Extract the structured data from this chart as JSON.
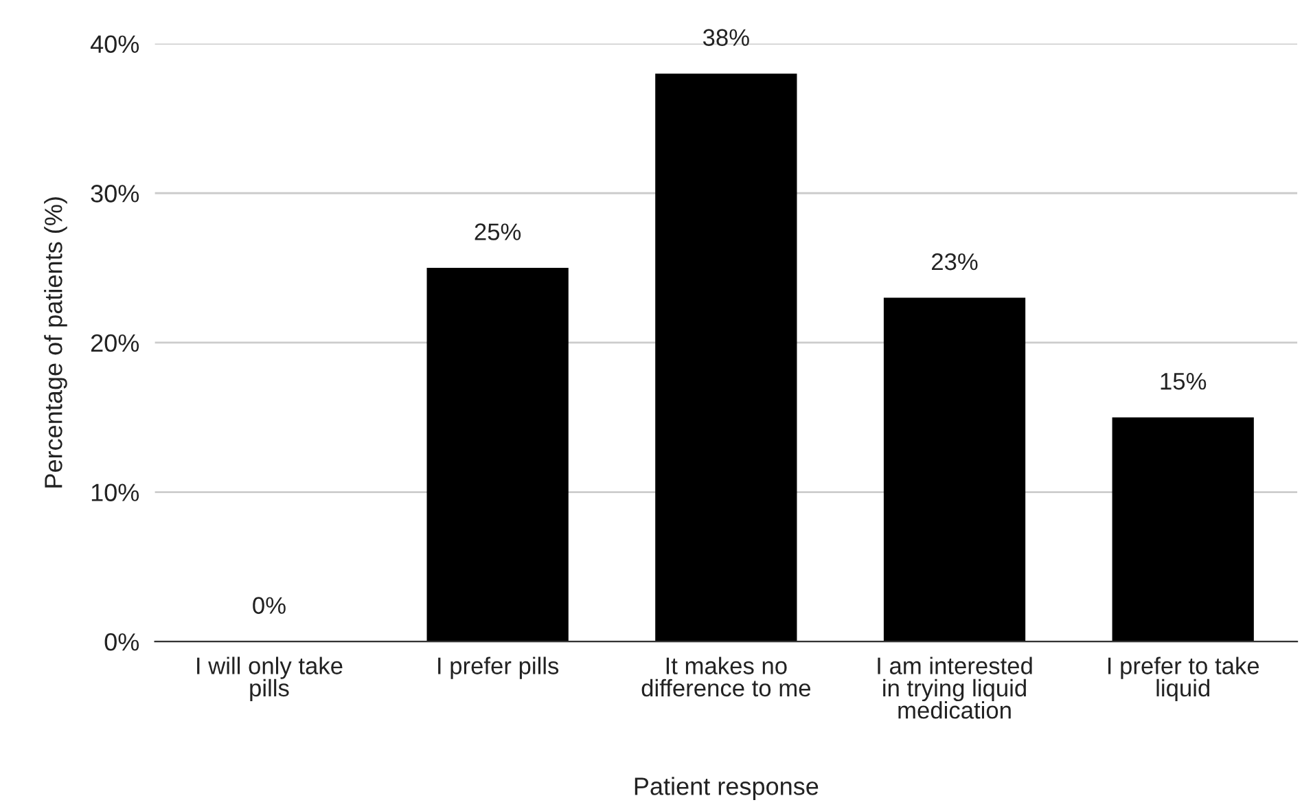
{
  "chart_data": {
    "type": "bar",
    "xlabel": "Patient response",
    "ylabel": "Percentage of patients (%)",
    "categories": [
      "I will only take\npills",
      "I prefer pills",
      "It makes no\ndifference to me",
      "I am interested\nin trying liquid\nmedication",
      "I prefer to take\nliquid"
    ],
    "values": [
      0,
      25,
      38,
      23,
      15
    ],
    "value_labels": [
      "0%",
      "25%",
      "38%",
      "23%",
      "15%"
    ],
    "color": "#000000",
    "ylim": [
      0,
      40
    ],
    "yticks": [
      {
        "value": 0,
        "label": "0%"
      },
      {
        "value": 10,
        "label": "10%"
      },
      {
        "value": 20,
        "label": "20%"
      },
      {
        "value": 30,
        "label": "30%"
      },
      {
        "value": 40,
        "label": "40%"
      }
    ],
    "grid": "y"
  }
}
